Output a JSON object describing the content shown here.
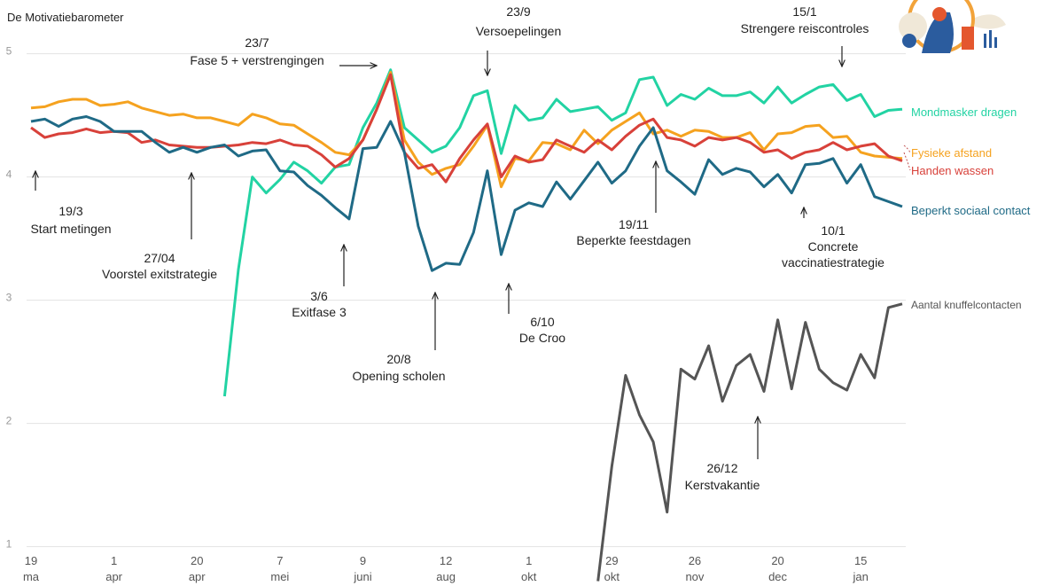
{
  "chart_data": {
    "type": "line",
    "title": "De Motivatiebarometer",
    "ylim": [
      0.7,
      5.4
    ],
    "yticks": [
      1,
      2,
      3,
      4,
      5
    ],
    "grid": true,
    "categories": [
      [
        "19",
        "ma"
      ],
      null,
      null,
      null,
      null,
      null,
      [
        "1",
        "apr"
      ],
      null,
      null,
      null,
      null,
      null,
      [
        "20",
        "apr"
      ],
      null,
      null,
      null,
      null,
      null,
      [
        "7",
        "mei"
      ],
      null,
      null,
      null,
      null,
      null,
      [
        "9",
        "juni"
      ],
      null,
      null,
      null,
      null,
      null,
      [
        "12",
        "aug"
      ],
      null,
      null,
      null,
      null,
      null,
      [
        "1",
        "okt"
      ],
      null,
      null,
      null,
      null,
      null,
      [
        "29",
        "okt"
      ],
      null,
      null,
      null,
      null,
      null,
      [
        "26",
        "nov"
      ],
      null,
      null,
      null,
      null,
      null,
      [
        "20",
        "dec"
      ],
      null,
      null,
      null,
      null,
      null,
      [
        "15",
        "jan"
      ],
      null,
      null,
      null
    ],
    "series": [
      {
        "name": "Mondmasker dragen",
        "color": "#22d3a3",
        "values": [
          null,
          null,
          null,
          null,
          null,
          null,
          null,
          null,
          null,
          null,
          null,
          null,
          null,
          null,
          2.22,
          3.25,
          4.0,
          3.87,
          3.98,
          4.12,
          4.05,
          3.95,
          4.08,
          4.1,
          4.4,
          4.6,
          4.87,
          4.4,
          4.3,
          4.2,
          4.25,
          4.4,
          4.66,
          4.7,
          4.19,
          4.58,
          4.46,
          4.48,
          4.63,
          4.53,
          4.55,
          4.57,
          4.46,
          4.52,
          4.79,
          4.81,
          4.58,
          4.67,
          4.63,
          4.72,
          4.66,
          4.66,
          4.69,
          4.6,
          4.73,
          4.6,
          4.67,
          4.73,
          4.75,
          4.62,
          4.67,
          4.49,
          4.54,
          4.55
        ]
      },
      {
        "name": "Fysieke afstand",
        "color": "#f5a21f",
        "values": [
          4.56,
          4.57,
          4.61,
          4.63,
          4.63,
          4.58,
          4.59,
          4.61,
          4.56,
          4.53,
          4.5,
          4.51,
          4.48,
          4.48,
          4.45,
          4.42,
          4.51,
          4.48,
          4.43,
          4.42,
          4.35,
          4.28,
          4.2,
          4.18,
          4.3,
          4.55,
          4.85,
          4.3,
          4.12,
          4.02,
          4.07,
          4.1,
          4.25,
          4.42,
          3.92,
          4.15,
          4.13,
          4.28,
          4.27,
          4.22,
          4.38,
          4.27,
          4.38,
          4.45,
          4.52,
          4.35,
          4.38,
          4.33,
          4.38,
          4.37,
          4.32,
          4.32,
          4.36,
          4.22,
          4.35,
          4.36,
          4.41,
          4.42,
          4.32,
          4.33,
          4.2,
          4.17,
          4.16,
          4.15
        ]
      },
      {
        "name": "Handen wassen",
        "color": "#d8413a",
        "values": [
          4.4,
          4.32,
          4.35,
          4.36,
          4.39,
          4.36,
          4.37,
          4.36,
          4.28,
          4.3,
          4.26,
          4.25,
          4.24,
          4.24,
          4.25,
          4.26,
          4.28,
          4.27,
          4.3,
          4.26,
          4.25,
          4.18,
          4.08,
          4.15,
          4.3,
          4.55,
          4.83,
          4.2,
          4.07,
          4.1,
          3.96,
          4.15,
          4.3,
          4.43,
          4.0,
          4.17,
          4.12,
          4.14,
          4.3,
          4.25,
          4.2,
          4.3,
          4.22,
          4.33,
          4.42,
          4.47,
          4.32,
          4.3,
          4.25,
          4.32,
          4.3,
          4.32,
          4.28,
          4.2,
          4.22,
          4.15,
          4.2,
          4.22,
          4.28,
          4.22,
          4.25,
          4.27,
          4.17,
          4.13
        ]
      },
      {
        "name": "Beperkt sociaal contact",
        "color": "#1f6a86",
        "values": [
          4.45,
          4.47,
          4.41,
          4.47,
          4.49,
          4.45,
          4.37,
          4.37,
          4.37,
          4.28,
          4.2,
          4.24,
          4.2,
          4.24,
          4.26,
          4.17,
          4.21,
          4.22,
          4.05,
          4.04,
          3.93,
          3.85,
          3.75,
          3.66,
          4.23,
          4.24,
          4.45,
          4.2,
          3.6,
          3.24,
          3.3,
          3.29,
          3.55,
          4.05,
          3.37,
          3.73,
          3.79,
          3.76,
          3.96,
          3.82,
          3.97,
          4.12,
          3.95,
          4.05,
          4.25,
          4.4,
          4.05,
          3.96,
          3.86,
          4.14,
          4.02,
          4.07,
          4.04,
          3.92,
          4.02,
          3.87,
          4.1,
          4.11,
          4.15,
          3.95,
          4.1,
          3.84,
          3.8,
          3.76
        ]
      },
      {
        "name": "Aantal knuffelcontacten",
        "color": "#555555",
        "values": [
          null,
          null,
          null,
          null,
          null,
          null,
          null,
          null,
          null,
          null,
          null,
          null,
          null,
          null,
          null,
          null,
          null,
          null,
          null,
          null,
          null,
          null,
          null,
          null,
          null,
          null,
          null,
          null,
          null,
          null,
          null,
          null,
          null,
          null,
          null,
          null,
          null,
          null,
          null,
          null,
          null,
          0.72,
          1.65,
          2.39,
          2.07,
          1.85,
          1.28,
          2.44,
          2.36,
          2.63,
          2.18,
          2.47,
          2.56,
          2.26,
          2.84,
          2.28,
          2.82,
          2.44,
          2.33,
          2.27,
          2.56,
          2.37,
          2.94,
          2.97
        ]
      }
    ],
    "annotations": [
      {
        "lines": [
          "19/3",
          "Start metingen"
        ]
      },
      {
        "lines": [
          "27/04",
          "Voorstel exitstrategie"
        ]
      },
      {
        "lines": [
          "3/6",
          "Exitfase 3"
        ]
      },
      {
        "lines": [
          "23/7",
          "Fase 5 + verstrengingen"
        ]
      },
      {
        "lines": [
          "20/8",
          "Opening scholen"
        ]
      },
      {
        "lines": [
          "23/9",
          "Versoepelingen"
        ]
      },
      {
        "lines": [
          "6/10",
          "De Croo"
        ]
      },
      {
        "lines": [
          "19/11",
          "Beperkte feestdagen"
        ]
      },
      {
        "lines": [
          "26/12",
          "Kerstvakantie"
        ]
      },
      {
        "lines": [
          "10/1",
          "Concrete",
          "vaccinatiestrategie"
        ]
      },
      {
        "lines": [
          "15/1",
          "Strengere reiscontroles"
        ]
      }
    ]
  }
}
